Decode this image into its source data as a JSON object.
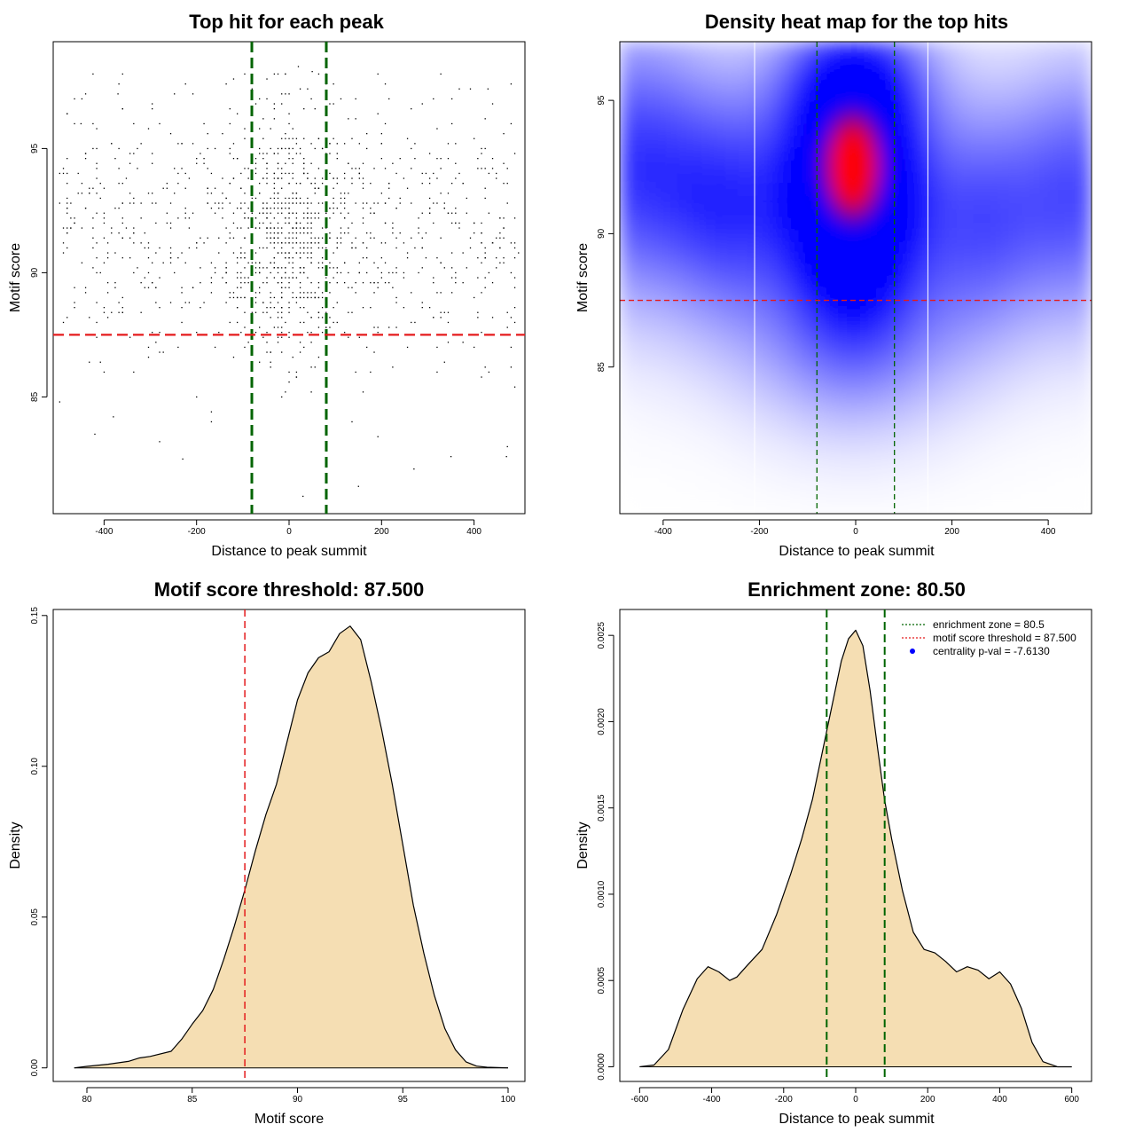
{
  "chart_data": [
    {
      "type": "scatter",
      "title": "Top hit for each peak",
      "xlabel": "Distance to peak summit",
      "ylabel": "Motif score",
      "xlim": [
        -510,
        510
      ],
      "ylim": [
        80.3,
        99.3
      ],
      "xticks": [
        "-400",
        "-200",
        "0",
        "200",
        "400"
      ],
      "yticks": [
        "85",
        "90",
        "95"
      ],
      "hline": 87.5,
      "vlines": [
        -80.5,
        80.5
      ],
      "colors": {
        "points": "#000000",
        "hline": "#e41a1c",
        "vlines": "#006400"
      },
      "grid": false,
      "point_generation": {
        "n": 1400,
        "center_fraction": 0.42,
        "center_sd": 75,
        "score_mean": 91.6,
        "score_sd": 2.7,
        "seed": 7
      },
      "sample_points": [
        {
          "x": 20,
          "y": 98.3
        },
        {
          "x": 50,
          "y": 98.1
        },
        {
          "x": -370,
          "y": 97.2
        },
        {
          "x": 480,
          "y": 97.6
        },
        {
          "x": 430,
          "y": 97.4
        },
        {
          "x": -450,
          "y": 96.0
        },
        {
          "x": 30,
          "y": 81.0
        },
        {
          "x": -230,
          "y": 82.5
        },
        {
          "x": 150,
          "y": 81.4
        },
        {
          "x": 270,
          "y": 82.1
        },
        {
          "x": 350,
          "y": 82.6
        },
        {
          "x": -280,
          "y": 83.2
        },
        {
          "x": -420,
          "y": 83.5
        },
        {
          "x": 470,
          "y": 82.6
        },
        {
          "x": -380,
          "y": 84.2
        }
      ]
    },
    {
      "type": "heatmap",
      "title": "Density heat map for the top hits",
      "xlabel": "Distance to peak summit",
      "ylabel": "Motif score",
      "xlim": [
        -490,
        490
      ],
      "ylim": [
        79.5,
        97.2
      ],
      "xticks": [
        "-400",
        "-200",
        "0",
        "200",
        "400"
      ],
      "yticks": [
        "85",
        "90",
        "95"
      ],
      "hline": 87.5,
      "vlines": [
        -80.5,
        80.5
      ],
      "white_lines": [
        -210,
        150
      ],
      "colors": {
        "low": "#ffffff",
        "mid": "#0000ff",
        "high": "#ff0000",
        "hline": "#e41a1c",
        "vlines": "#006400"
      },
      "density_peak": {
        "x": -5,
        "y": 92.5
      }
    },
    {
      "type": "area",
      "title": "Motif score threshold: 87.500",
      "xlabel": "Motif score",
      "ylabel": "Density",
      "xlim": [
        78.4,
        100.8
      ],
      "ylim": [
        -0.0045,
        0.152
      ],
      "xticks": [
        "80",
        "85",
        "90",
        "95",
        "100"
      ],
      "yticks": [
        "0.00",
        "0.05",
        "0.10",
        "0.15"
      ],
      "vline": 87.5,
      "colors": {
        "fill": "#f5deb3",
        "line": "#000000",
        "vline": "#e41a1c"
      },
      "x": [
        79.4,
        80,
        81,
        82,
        82.5,
        83,
        84,
        84.5,
        85,
        85.5,
        86,
        86.5,
        87,
        87.5,
        88,
        88.5,
        89,
        89.5,
        90,
        90.5,
        91,
        91.5,
        92,
        92.5,
        93,
        93.5,
        94,
        94.5,
        95,
        95.5,
        96,
        96.5,
        97,
        97.5,
        98,
        98.5,
        99,
        100
      ],
      "values": [
        0.0,
        0.0005,
        0.0012,
        0.0022,
        0.0033,
        0.0038,
        0.0055,
        0.0095,
        0.0145,
        0.019,
        0.026,
        0.036,
        0.047,
        0.059,
        0.072,
        0.084,
        0.094,
        0.108,
        0.122,
        0.131,
        0.136,
        0.138,
        0.144,
        0.1465,
        0.142,
        0.128,
        0.112,
        0.094,
        0.074,
        0.054,
        0.038,
        0.024,
        0.013,
        0.006,
        0.002,
        0.0006,
        0.0002,
        0.0
      ]
    },
    {
      "type": "area",
      "title": "Enrichment zone: 80.50",
      "xlabel": "Distance to peak summit",
      "ylabel": "Density",
      "xlim": [
        -655,
        655
      ],
      "ylim": [
        -8.5e-05,
        0.00265
      ],
      "xticks": [
        "-600",
        "-400",
        "-200",
        "0",
        "200",
        "400",
        "600"
      ],
      "yticks": [
        "0.0000",
        "0.0005",
        "0.0010",
        "0.0015",
        "0.0020",
        "0.0025"
      ],
      "vlines": [
        -80.5,
        80.5
      ],
      "colors": {
        "fill": "#f5deb3",
        "line": "#000000",
        "vlines": "#006400",
        "legend_zone": "#006400",
        "legend_threshold": "#e41a1c",
        "legend_pval": "#0000ff"
      },
      "legend": {
        "position": "top-right",
        "items": [
          "enrichment zone = 80.5",
          "motif score threshold = 87.500",
          "centrality p-val = -7.6130"
        ]
      },
      "x": [
        -600,
        -560,
        -520,
        -480,
        -440,
        -410,
        -380,
        -350,
        -330,
        -300,
        -260,
        -220,
        -180,
        -150,
        -120,
        -90,
        -60,
        -40,
        -20,
        0,
        20,
        40,
        60,
        80,
        100,
        130,
        160,
        190,
        220,
        250,
        280,
        310,
        340,
        370,
        400,
        430,
        460,
        490,
        520,
        560,
        600
      ],
      "values": [
        0.0,
        1e-05,
        0.0001,
        0.00033,
        0.00051,
        0.00058,
        0.00055,
        0.0005,
        0.00052,
        0.00059,
        0.00068,
        0.00088,
        0.00112,
        0.00132,
        0.00155,
        0.00185,
        0.00215,
        0.00235,
        0.00248,
        0.00253,
        0.00244,
        0.00218,
        0.00186,
        0.00155,
        0.00132,
        0.00102,
        0.00078,
        0.00068,
        0.00066,
        0.00061,
        0.00055,
        0.00058,
        0.00056,
        0.00051,
        0.00055,
        0.00048,
        0.00034,
        0.00014,
        3e-05,
        0.0,
        0.0
      ]
    }
  ]
}
